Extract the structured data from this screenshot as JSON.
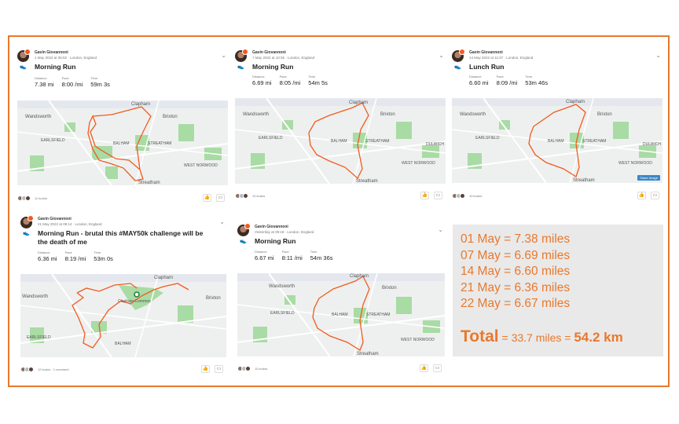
{
  "cards": [
    {
      "athlete": "Gavin Giovannoni",
      "date": "1 May 2022 at 06:02 · London, England",
      "title": "Morning Run",
      "stats": [
        {
          "label": "Distance",
          "value": "7.38 mi"
        },
        {
          "label": "Pace",
          "value": "8:00 /mi"
        },
        {
          "label": "Time",
          "value": "59m 3s"
        }
      ],
      "map_labels": [
        "Clapham",
        "Wandsworth",
        "Brixton",
        "EARLSFIELD",
        "BALHAM",
        "STREATHAM",
        "WEST NORWOOD",
        "Streatham"
      ],
      "kudos": "11 kudos"
    },
    {
      "athlete": "Gavin Giovannoni",
      "date": "7 May 2022 at 10:35 · London, England",
      "title": "Morning Run",
      "stats": [
        {
          "label": "Distance",
          "value": "6.69 mi"
        },
        {
          "label": "Pace",
          "value": "8:05 /mi"
        },
        {
          "label": "Time",
          "value": "54m 5s"
        }
      ],
      "map_labels": [
        "Clapham",
        "Wandsworth",
        "Brixton",
        "EARLSFIELD",
        "BALHAM",
        "STREATHAM",
        "WEST NORWOOD",
        "Streatham",
        "DULWICH"
      ],
      "kudos": "10 kudos"
    },
    {
      "athlete": "Gavin Giovannoni",
      "date": "14 May 2022 at 11:07 · London, England",
      "title": "Lunch Run",
      "stats": [
        {
          "label": "Distance",
          "value": "6.60 mi"
        },
        {
          "label": "Pace",
          "value": "8:09 /mi"
        },
        {
          "label": "Time",
          "value": "53m 46s"
        }
      ],
      "map_labels": [
        "Clapham",
        "Wandsworth",
        "Brixton",
        "EARLSFIELD",
        "BALHAM",
        "STREATHAM",
        "WEST NORWOOD",
        "Streatham",
        "DULWICH"
      ],
      "kudos": "10 kudos",
      "share_label": "Share Image"
    },
    {
      "athlete": "Gavin Giovannoni",
      "date": "21 May 2022 at 09:14 · London, England",
      "title": "Morning Run - brutal this #MAY50k challenge will be the death of me",
      "stats": [
        {
          "label": "Distance",
          "value": "6.36 mi"
        },
        {
          "label": "Pace",
          "value": "8:19 /mi"
        },
        {
          "label": "Time",
          "value": "53m 0s"
        }
      ],
      "map_labels": [
        "Clapham",
        "Wandsworth",
        "Brixton",
        "EARLSFIELD",
        "BALHAM",
        "Clapham Common"
      ],
      "kudos": "12 kudos · 1 comment"
    },
    {
      "athlete": "Gavin Giovannoni",
      "date": "Yesterday at 09:18 · London, England",
      "title": "Morning Run",
      "stats": [
        {
          "label": "Distance",
          "value": "6.67 mi"
        },
        {
          "label": "Pace",
          "value": "8:11 /mi"
        },
        {
          "label": "Time",
          "value": "54m 36s"
        }
      ],
      "map_labels": [
        "Clapham",
        "Wandsworth",
        "Brixton",
        "EARLSFIELD",
        "BALHAM",
        "STREATHAM",
        "WEST NORWOOD",
        "Streatham"
      ],
      "kudos": "10 kudos"
    }
  ],
  "summary": {
    "lines": [
      "01 May = 7.38 miles",
      "07 May = 6.69 miles",
      "14 May = 6.60 miles",
      "21 May = 6.36 miles",
      "22 May = 6.67 miles"
    ],
    "total_word": "Total",
    "total_mid": " = 33.7 miles = ",
    "total_km": "54.2 km"
  },
  "icons": {
    "shoe": "shoe-icon",
    "chevron": "chevron-down-icon",
    "kudos": "thumbs-up-icon",
    "comment": "comment-icon"
  },
  "colors": {
    "accent": "#e9782c",
    "route": "#f25a1f",
    "park": "#a9dba5",
    "map_bg": "#eef0ef"
  }
}
